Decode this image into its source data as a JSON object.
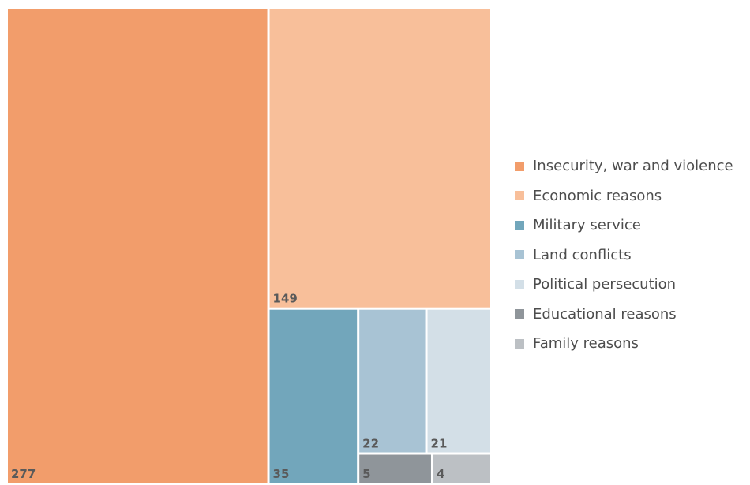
{
  "chart_data": {
    "type": "treemap",
    "title": "",
    "categories": [
      "Insecurity, war and violence",
      "Economic reasons",
      "Military service",
      "Land conflicts",
      "Political persecution",
      "Educational reasons",
      "Family reasons"
    ],
    "values": [
      277,
      149,
      35,
      22,
      21,
      5,
      4
    ],
    "colors": [
      "#f29d6b",
      "#f8bf9a",
      "#72a6bb",
      "#a8c3d4",
      "#d3dfe7",
      "#8f959a",
      "#bcc0c4"
    ],
    "legend_position": "right"
  },
  "legend": {
    "items": [
      {
        "label": "Insecurity, war and violence",
        "color": "#f29d6b"
      },
      {
        "label": "Economic reasons",
        "color": "#f8bf9a"
      },
      {
        "label": "Military service",
        "color": "#72a6bb"
      },
      {
        "label": "Land conflicts",
        "color": "#a8c3d4"
      },
      {
        "label": " Political persecution",
        "color": "#d3dfe7"
      },
      {
        "label": " Educational reasons",
        "color": "#8f959a"
      },
      {
        "label": "Family reasons",
        "color": "#bcc0c4"
      }
    ]
  }
}
